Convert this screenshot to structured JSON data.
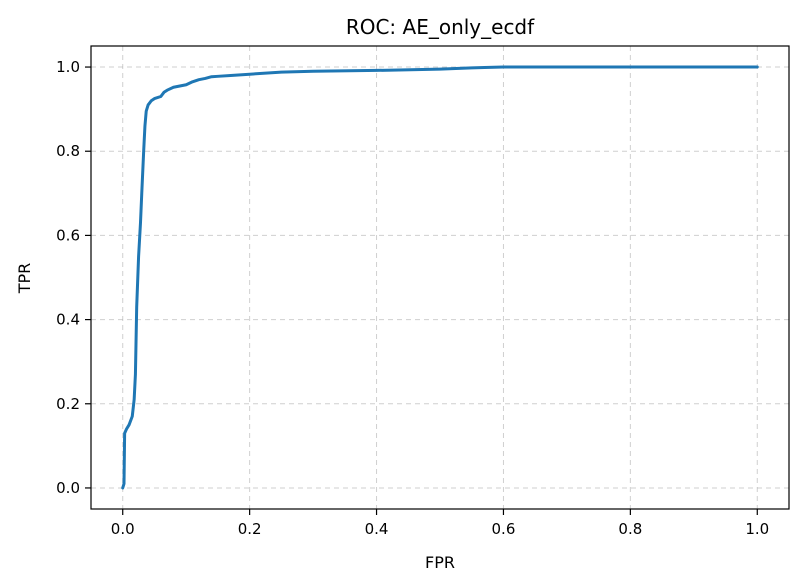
{
  "chart_data": {
    "type": "line",
    "title": "ROC: AE_only_ecdf",
    "xlabel": "FPR",
    "ylabel": "TPR",
    "xlim": [
      -0.05,
      1.05
    ],
    "ylim": [
      -0.05,
      1.05
    ],
    "xticks": [
      "0.0",
      "0.2",
      "0.4",
      "0.6",
      "0.8",
      "1.0"
    ],
    "yticks": [
      "0.0",
      "0.2",
      "0.4",
      "0.6",
      "0.8",
      "1.0"
    ],
    "grid": true,
    "series": [
      {
        "color": "#1f77b4",
        "x": [
          0.0,
          0.002,
          0.003,
          0.006,
          0.01,
          0.015,
          0.018,
          0.02,
          0.022,
          0.025,
          0.028,
          0.03,
          0.033,
          0.035,
          0.037,
          0.04,
          0.045,
          0.05,
          0.06,
          0.065,
          0.07,
          0.08,
          0.09,
          0.1,
          0.11,
          0.12,
          0.13,
          0.14,
          0.15,
          0.17,
          0.2,
          0.25,
          0.3,
          0.4,
          0.5,
          0.55,
          0.57,
          0.6,
          0.7,
          0.8,
          0.9,
          1.0
        ],
        "y": [
          0.0,
          0.01,
          0.13,
          0.14,
          0.15,
          0.17,
          0.21,
          0.27,
          0.43,
          0.55,
          0.63,
          0.7,
          0.8,
          0.86,
          0.895,
          0.91,
          0.92,
          0.925,
          0.93,
          0.94,
          0.945,
          0.952,
          0.955,
          0.958,
          0.965,
          0.97,
          0.973,
          0.977,
          0.978,
          0.98,
          0.983,
          0.988,
          0.99,
          0.992,
          0.995,
          0.998,
          0.999,
          1.0,
          1.0,
          1.0,
          1.0,
          1.0
        ]
      }
    ]
  }
}
